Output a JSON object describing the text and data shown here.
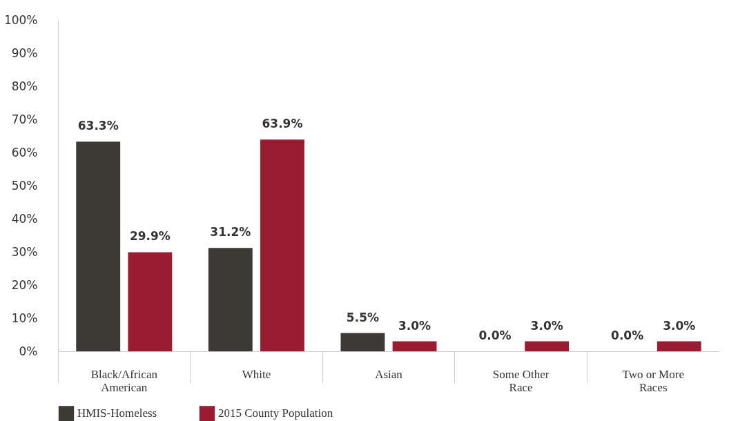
{
  "chart_data": {
    "type": "bar",
    "categories": [
      "Black/African American",
      "White",
      "Asian",
      "Some Other Race",
      "Two or More Races"
    ],
    "series": [
      {
        "name": "HMIS-Homeless",
        "color": "#3d3935",
        "values": [
          63.3,
          31.2,
          5.5,
          0.0,
          0.0
        ]
      },
      {
        "name": "2015 County Population",
        "color": "#9b1b30",
        "values": [
          29.9,
          63.9,
          3.0,
          3.0,
          3.0
        ]
      }
    ],
    "ylim": [
      0,
      100
    ],
    "yticks": [
      {
        "value": 0,
        "label": "0%"
      },
      {
        "value": 10,
        "label": "10%"
      },
      {
        "value": 20,
        "label": "20%"
      },
      {
        "value": 30,
        "label": "30%"
      },
      {
        "value": 40,
        "label": "40%"
      },
      {
        "value": 50,
        "label": "50%"
      },
      {
        "value": 60,
        "label": "60%"
      },
      {
        "value": 70,
        "label": "70%"
      },
      {
        "value": 80,
        "label": "80%"
      },
      {
        "value": 90,
        "label": "90%"
      },
      {
        "value": 100,
        "label": "100%"
      }
    ],
    "value_labels": [
      [
        "63.3%",
        "31.2%",
        "5.5%",
        "0.0%",
        "0.0%"
      ],
      [
        "29.9%",
        "63.9%",
        "3.0%",
        "3.0%",
        "3.0%"
      ]
    ],
    "grid": false,
    "legend": "bottom"
  }
}
